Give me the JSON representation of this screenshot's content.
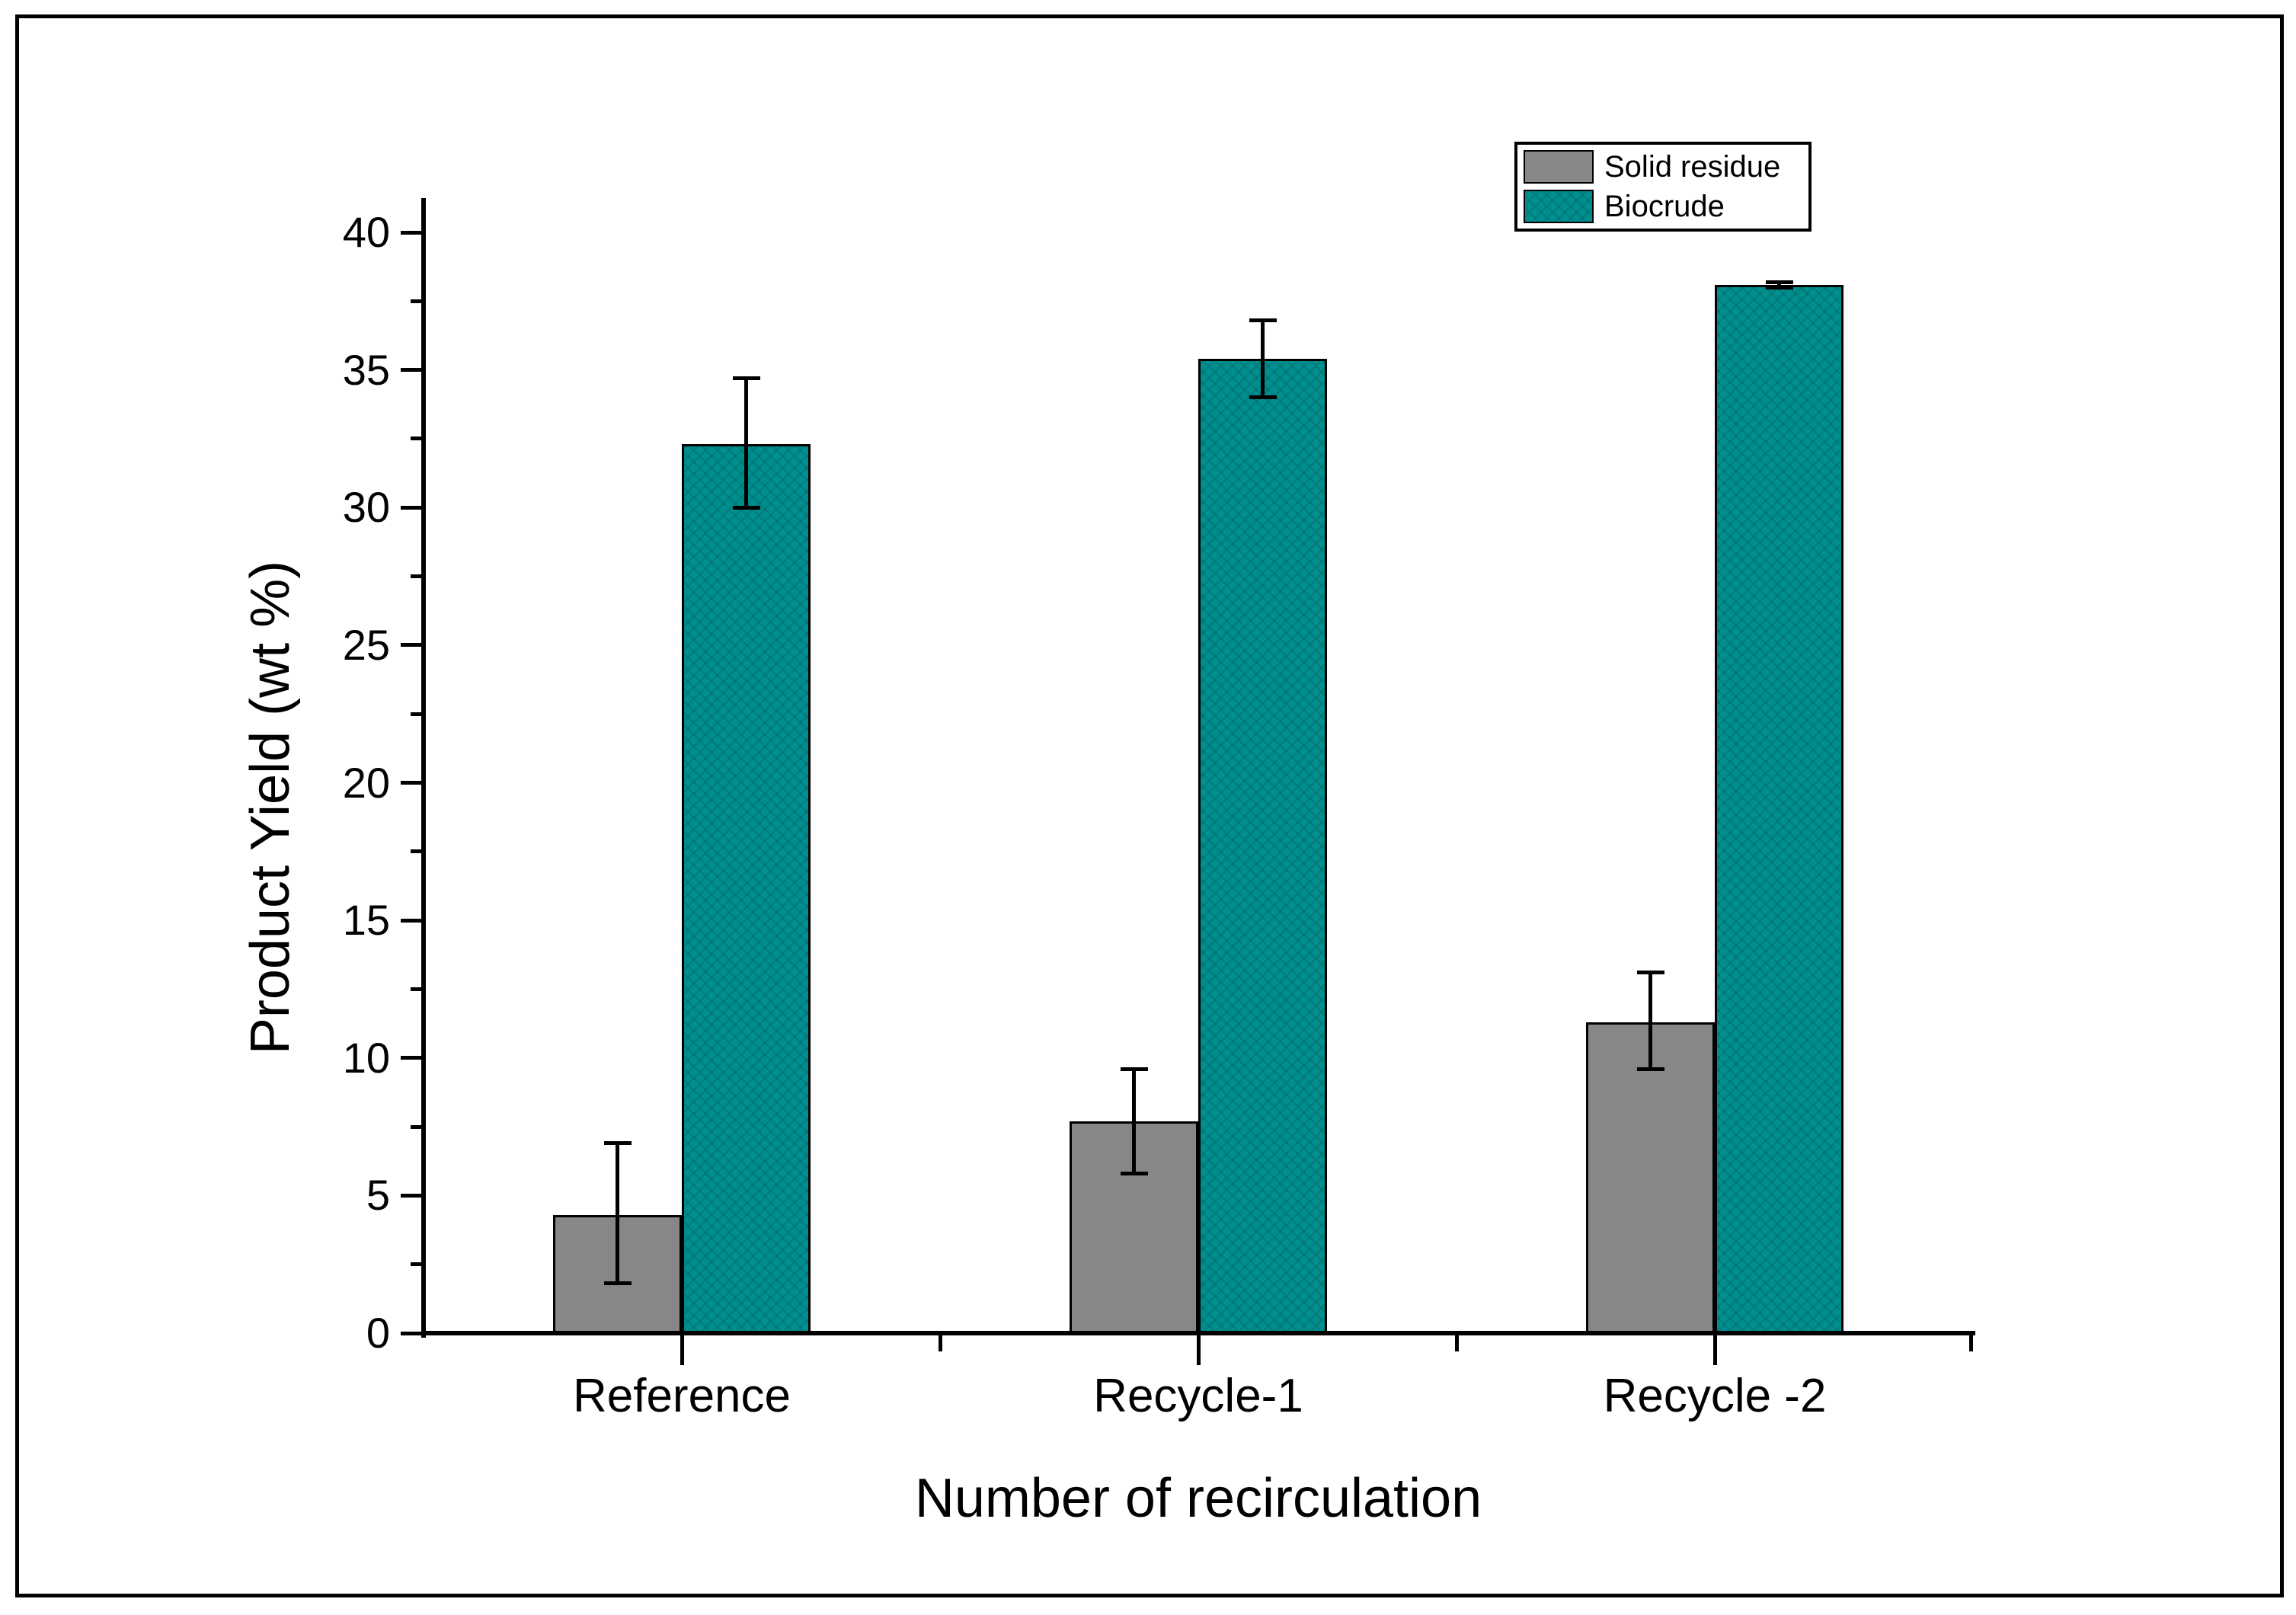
{
  "chart_data": {
    "type": "bar",
    "xlabel": "Number of recirculation",
    "ylabel": "Product Yield (wt %)",
    "categories": [
      "Reference",
      "Recycle-1",
      "Recycle -2"
    ],
    "series": [
      {
        "name": "Solid residue",
        "color": "#878787",
        "textured": false,
        "values": [
          4.3,
          7.7,
          11.3
        ],
        "error_low": [
          1.8,
          5.8,
          9.6
        ],
        "error_high": [
          6.9,
          9.6,
          13.1
        ]
      },
      {
        "name": "Biocrude",
        "color": "#008F8F",
        "textured": true,
        "values": [
          32.3,
          35.4,
          38.1
        ],
        "error_low": [
          30.0,
          34.0,
          38.0
        ],
        "error_high": [
          34.7,
          36.8,
          38.2
        ]
      }
    ],
    "ylim": [
      0,
      40
    ],
    "ytick_step": 5,
    "yminor_step": 2.5,
    "ytick_labels": [
      "0",
      "5",
      "10",
      "15",
      "20",
      "25",
      "30",
      "35",
      "40"
    ],
    "legend_position": "top-right",
    "grid": false,
    "axis_color": "#000000"
  }
}
